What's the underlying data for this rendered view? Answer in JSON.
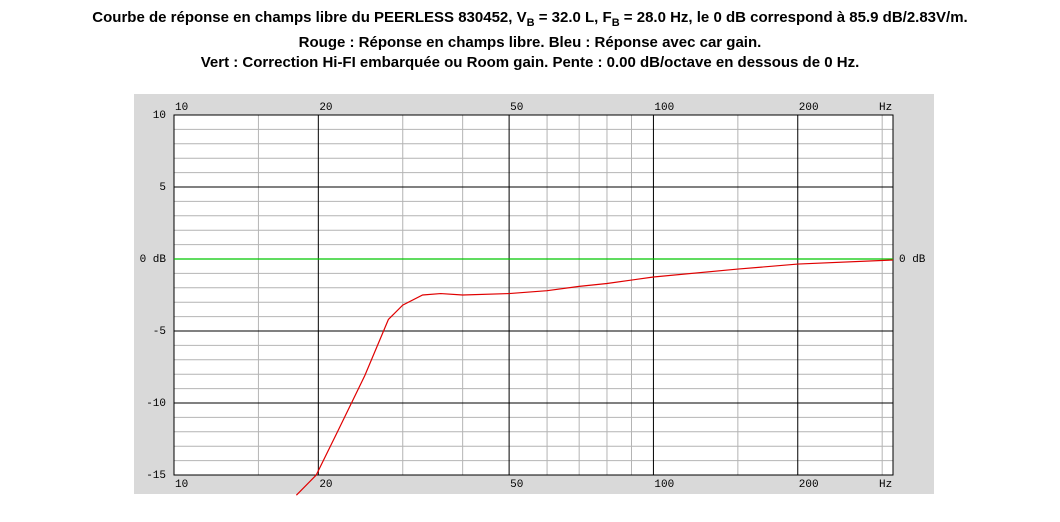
{
  "chart_data": {
    "type": "line",
    "title_parts": [
      "Courbe de réponse en champs libre du PEERLESS 830452, V",
      "B",
      " = 32.0 L, F",
      "B",
      " = 28.0 Hz, le 0 dB correspond à 85.9 dB/2.83V/m."
    ],
    "subtitle": [
      "Rouge : Réponse en champs libre. Bleu : Réponse avec car gain.",
      "Vert : Correction Hi-FI embarquée ou Room gain. Pente : 0.00 dB/octave en dessous de 0 Hz."
    ],
    "xscale": "log",
    "xlim": [
      10,
      316
    ],
    "xticks": [
      10,
      20,
      50,
      100,
      200
    ],
    "xminor": [
      15,
      30,
      40,
      60,
      70,
      80,
      90,
      150,
      300
    ],
    "x_unit": "Hz",
    "ylim": [
      -15,
      10
    ],
    "yticks": [
      10,
      5,
      {
        "value": 0,
        "label": "0 dB"
      },
      -5,
      -10,
      -15
    ],
    "yminor": [
      9,
      8,
      7,
      6,
      4,
      3,
      2,
      1,
      -1,
      -2,
      -3,
      -4,
      -6,
      -7,
      -8,
      -9,
      -11,
      -12,
      -13,
      -14
    ],
    "grid": true,
    "series": [
      {
        "name": "Vert",
        "color": "#00c800",
        "x": [
          10,
          316
        ],
        "values": [
          0,
          0
        ]
      },
      {
        "name": "Rouge",
        "color": "#e00000",
        "x": [
          18,
          19.8,
          22,
          25,
          28,
          30,
          33,
          36,
          40,
          50,
          60,
          70,
          80,
          100,
          150,
          200,
          316
        ],
        "values": [
          -16.4,
          -15,
          -11.9,
          -8.1,
          -4.2,
          -3.2,
          -2.5,
          -2.4,
          -2.5,
          -2.4,
          -2.2,
          -1.9,
          -1.7,
          -1.25,
          -0.7,
          -0.35,
          -0.07
        ]
      }
    ]
  }
}
